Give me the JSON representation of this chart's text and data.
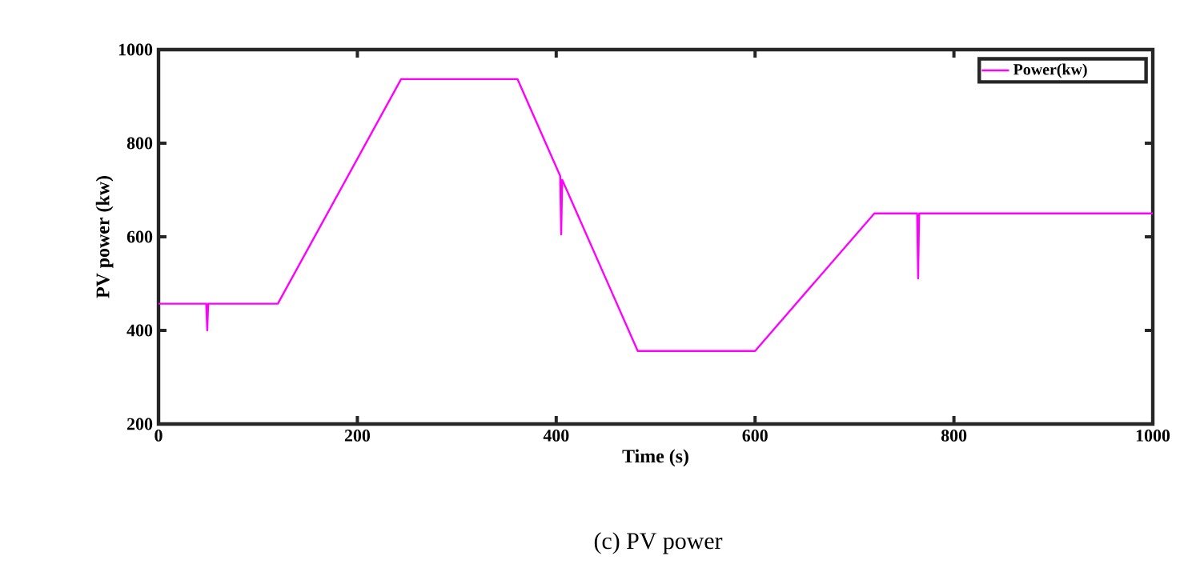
{
  "chart_data": {
    "type": "line",
    "xlabel": "Time (s)",
    "ylabel": "PV power (kw)",
    "xlim": [
      0,
      1000
    ],
    "ylim": [
      200,
      1000
    ],
    "xticks": [
      0,
      200,
      400,
      600,
      800,
      1000
    ],
    "yticks": [
      200,
      400,
      600,
      800,
      1000
    ],
    "grid": false,
    "legend": "top right",
    "marker": "none",
    "line_style": "solid",
    "annotations": [
      "(c) PV power"
    ],
    "series": [
      {
        "name": "Power(kw)",
        "color": "#ff00ff",
        "x": [
          0,
          48,
          49,
          50,
          120,
          244,
          361,
          404,
          405,
          406,
          482,
          600,
          720,
          763,
          764,
          765,
          1000
        ],
        "values": [
          457,
          457,
          400,
          457,
          457,
          937,
          937,
          730,
          605,
          722,
          356,
          356,
          650,
          650,
          511,
          650,
          650
        ]
      }
    ]
  }
}
